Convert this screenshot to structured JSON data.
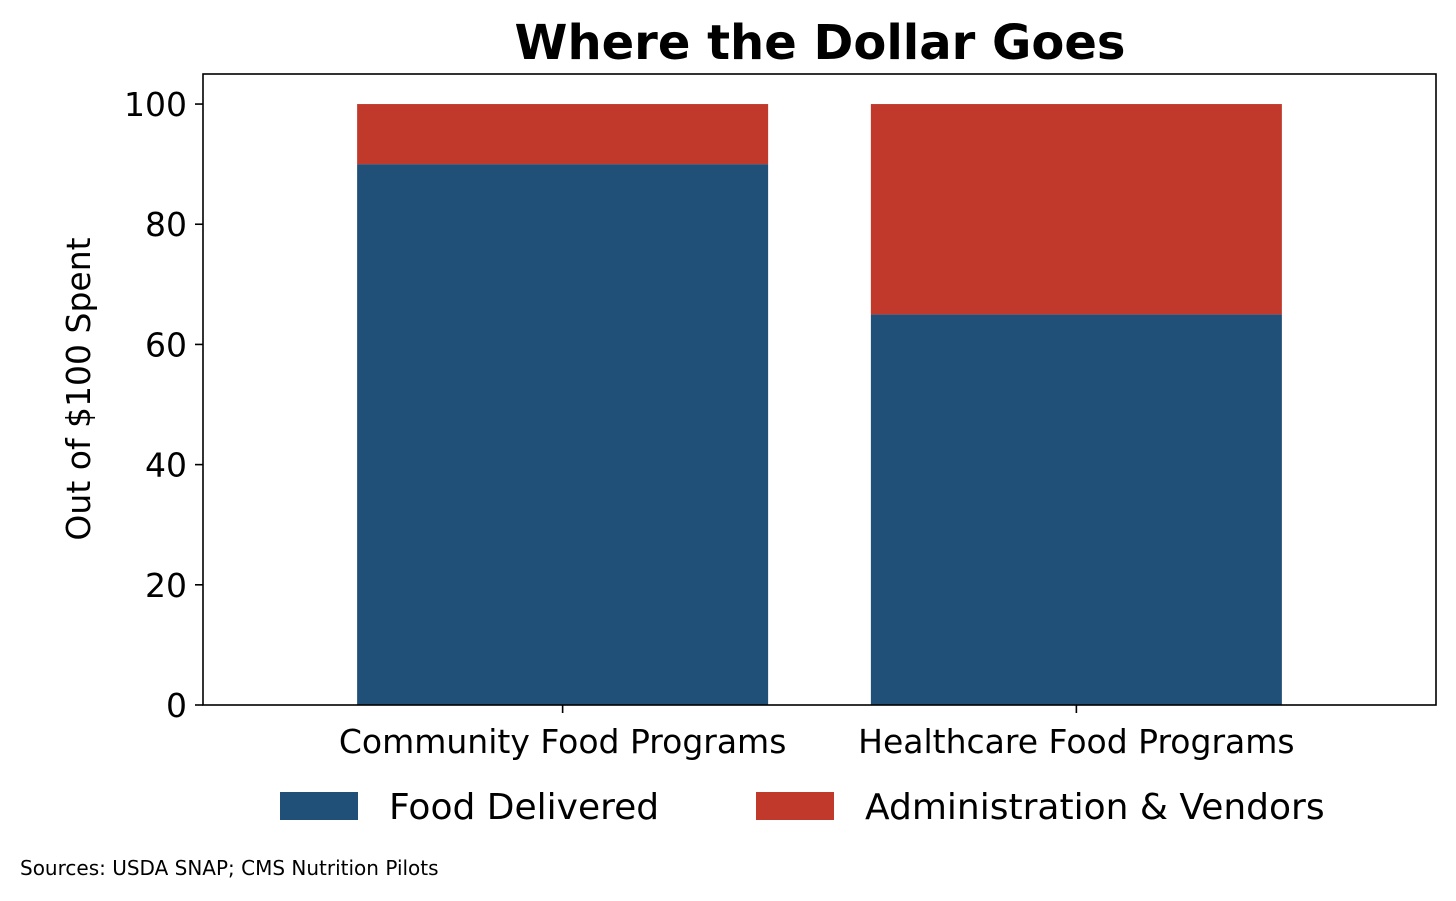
{
  "chart_data": {
    "type": "bar",
    "stacked": true,
    "title": "Where the Dollar Goes",
    "xlabel": "",
    "ylabel": "Out of $100 Spent",
    "ylim": [
      0,
      105
    ],
    "yticks": [
      0,
      20,
      40,
      60,
      80,
      100
    ],
    "categories": [
      "Community Food Programs",
      "Healthcare Food Programs"
    ],
    "series": [
      {
        "name": "Food Delivered",
        "values": [
          90,
          65
        ],
        "color": "#204f78"
      },
      {
        "name": "Administration & Vendors",
        "values": [
          10,
          35
        ],
        "color": "#c0392b"
      }
    ],
    "legend": "bottom-center",
    "grid": false
  },
  "footer": {
    "source": "Sources: USDA SNAP; CMS Nutrition Pilots"
  }
}
